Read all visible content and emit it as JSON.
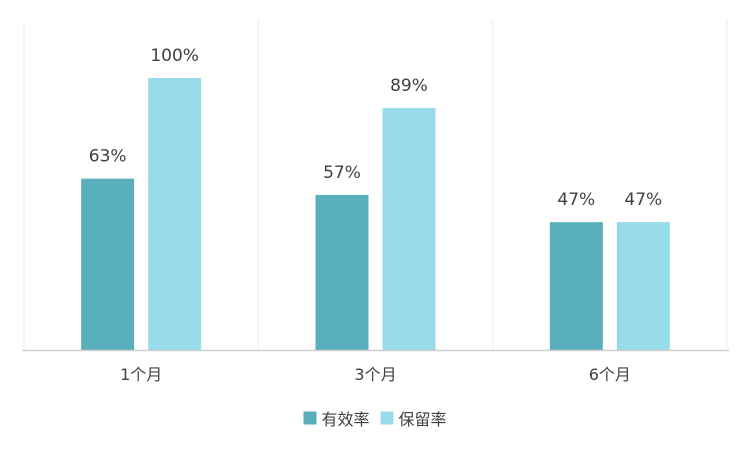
{
  "chart_data": {
    "type": "bar",
    "categories": [
      "1个月",
      "3个月",
      "6个月"
    ],
    "series": [
      {
        "name": "有效率",
        "values": [
          63,
          57,
          47
        ],
        "labels": [
          "63%",
          "57%",
          "47%"
        ],
        "color": "#5aafbc"
      },
      {
        "name": "保留率",
        "values": [
          100,
          89,
          47
        ],
        "labels": [
          "100%",
          "89%",
          "47%"
        ],
        "color": "#98dbea"
      }
    ],
    "ylim": [
      0,
      100
    ],
    "grid": false,
    "legend": "bottom",
    "axis_color": "#d0d0d0",
    "separator_color": "#ececec"
  }
}
